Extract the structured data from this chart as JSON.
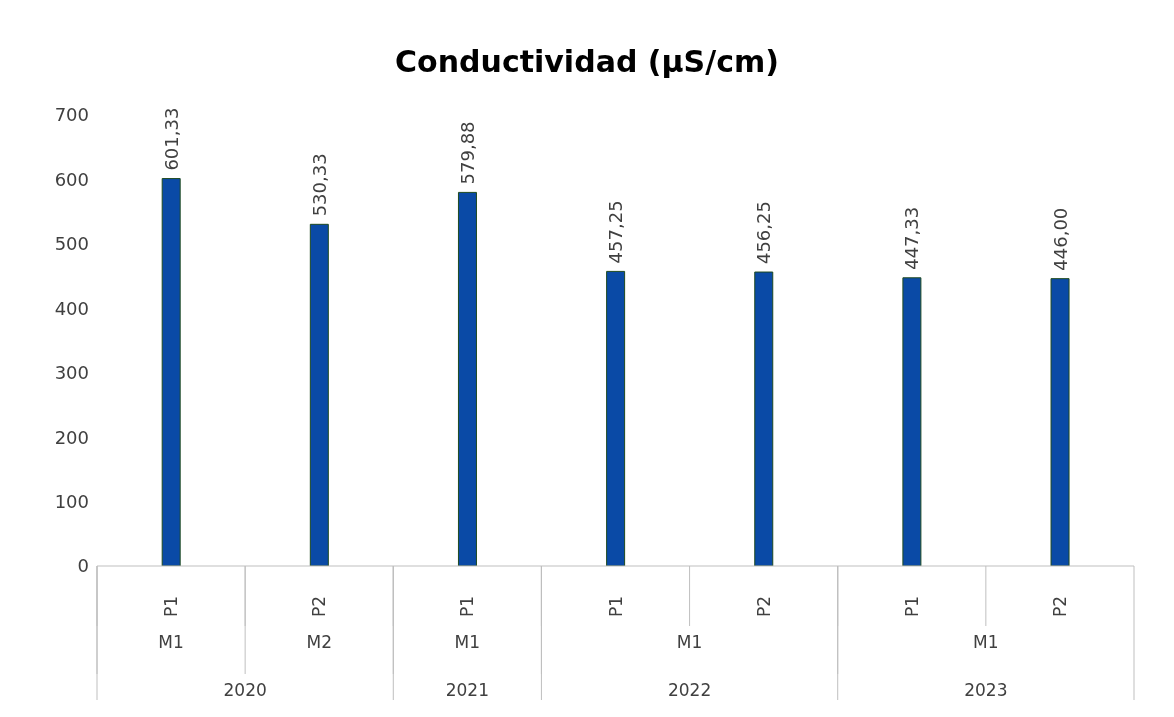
{
  "chart_data": {
    "type": "bar",
    "title": "Conductividad (µS/cm)",
    "categories": [
      "P1",
      "P2",
      "P1",
      "P1",
      "P2",
      "P1",
      "P2"
    ],
    "values": [
      601.33,
      530.33,
      579.88,
      457.25,
      456.25,
      447.33,
      446.0
    ],
    "value_labels": [
      "601,33",
      "530,33",
      "579,88",
      "457,25",
      "456,25",
      "447,33",
      "446,00"
    ],
    "color": "#0a4aa6",
    "annotations": [
      "M1",
      "M2",
      "M1",
      "M1",
      "M1",
      "2020",
      "2021",
      "2022",
      "2023"
    ],
    "ylim": [
      0,
      700
    ],
    "yticks": [
      0,
      100,
      200,
      300,
      400,
      500,
      600,
      700
    ],
    "grid": false,
    "legend": false
  }
}
